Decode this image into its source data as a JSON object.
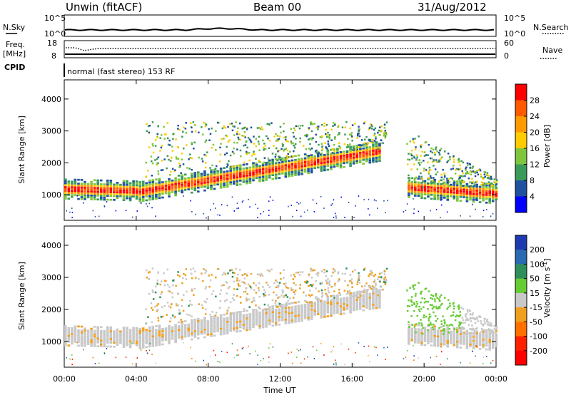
{
  "header": {
    "station": "Unwin (fitACF)",
    "beam": "Beam 00",
    "date": "31/Aug/2012"
  },
  "top_panels": {
    "nsky_label": "N.Sky",
    "nsky_ticks": [
      "10^5",
      "10^0"
    ],
    "nsearch_label": "N.Search",
    "nsearch_ticks": [
      "10^5",
      "10^0"
    ],
    "freq_label_1": "Freq.",
    "freq_label_2": "[MHz]",
    "freq_ticks": [
      "18",
      "8"
    ],
    "nave_label": "Nave",
    "nave_ticks": [
      "60",
      "0"
    ],
    "cpid_label": "CPID",
    "cpid_text": "normal (fast stereo) 153 RF"
  },
  "chart_data": [
    {
      "type": "heatmap",
      "name": "power",
      "ylabel": "Slant Range [km]",
      "yticks": [
        1000,
        2000,
        3000,
        4000
      ],
      "ylim": [
        200,
        4600
      ],
      "xlim": [
        0,
        24
      ],
      "colorbar": {
        "label": "Power [dB]",
        "ticks": [
          "28",
          "24",
          "20",
          "16",
          "12",
          "8",
          "4"
        ],
        "colors": [
          "#ff0000",
          "#ff5a00",
          "#ff9a00",
          "#ffcc00",
          "#7fc63c",
          "#3a9a5a",
          "#2050a0",
          "#0000ff"
        ]
      }
    },
    {
      "type": "heatmap",
      "name": "velocity",
      "ylabel": "Slant Range [km]",
      "yticks": [
        1000,
        2000,
        3000,
        4000
      ],
      "ylim": [
        200,
        4600
      ],
      "xlim": [
        0,
        24
      ],
      "colorbar": {
        "label": "Velocity [m s^-1]",
        "ticks": [
          "200",
          "100",
          "50",
          "15",
          "-15",
          "-50",
          "-100",
          "-200"
        ],
        "colors": [
          "#1f3ab0",
          "#2a6ab0",
          "#2e8f5a",
          "#66cc33",
          "#c8c8c8",
          "#f0a020",
          "#ff7000",
          "#ff2000",
          "#ff0000"
        ]
      }
    }
  ],
  "x_axis": {
    "label": "Time UT",
    "ticks": [
      "00:00",
      "04:00",
      "08:00",
      "12:00",
      "16:00",
      "20:00",
      "00:00"
    ]
  },
  "colors": {
    "frame": "#000000"
  }
}
